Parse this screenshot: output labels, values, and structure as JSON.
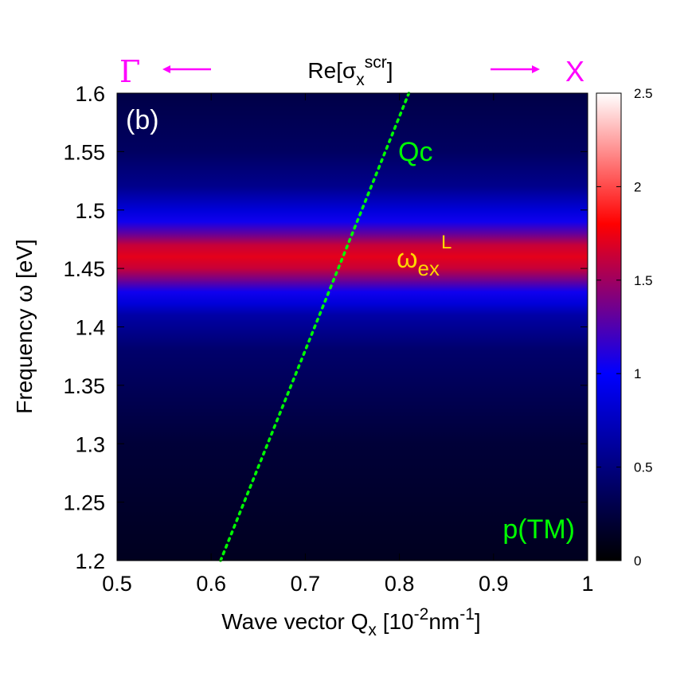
{
  "chart_data": {
    "type": "heatmap",
    "title": "Re[σ",
    "title_sub": "x",
    "title_sup": "scr",
    "title_end": "]",
    "xlabel": {
      "main": "Wave vector Q",
      "sub": "x",
      "bracket_open": " [10",
      "exp1": "-2",
      "unit": "nm",
      "exp2": "-1",
      "bracket_close": "]"
    },
    "ylabel": "Frequency ω [eV]",
    "xlim": [
      0.5,
      1.0
    ],
    "ylim": [
      1.2,
      1.6
    ],
    "x_ticks": [
      0.5,
      0.6,
      0.7,
      0.8,
      0.9,
      1.0
    ],
    "x_tick_labels": [
      "0.5",
      "0.6",
      "0.7",
      "0.8",
      "0.9",
      "1"
    ],
    "y_ticks": [
      1.2,
      1.25,
      1.3,
      1.35,
      1.4,
      1.45,
      1.5,
      1.55,
      1.6
    ],
    "y_tick_labels": [
      "1.2",
      "1.25",
      "1.3",
      "1.35",
      "1.4",
      "1.45",
      "1.5",
      "1.55",
      "1.6"
    ],
    "colorbar": {
      "range": [
        0,
        2.5
      ],
      "ticks": [
        0,
        0.5,
        1,
        1.5,
        2,
        2.5
      ],
      "tick_labels": [
        "0",
        "0.5",
        "1",
        "1.5",
        "2",
        "2.5"
      ],
      "colors": [
        "#000000",
        "#0000ff",
        "#ff0000",
        "#ffffff"
      ]
    },
    "profile": {
      "description_free": true,
      "omega": [
        1.2,
        1.3,
        1.38,
        1.41,
        1.42,
        1.43,
        1.44,
        1.45,
        1.46,
        1.47,
        1.48,
        1.49,
        1.5,
        1.51,
        1.52,
        1.55,
        1.6
      ],
      "value": [
        0.12,
        0.22,
        0.42,
        0.65,
        0.85,
        1.05,
        1.35,
        1.62,
        1.72,
        1.62,
        1.3,
        1.05,
        0.85,
        0.7,
        0.55,
        0.38,
        0.28
      ]
    },
    "light_line": {
      "label": "Qc",
      "color": "#00ff00",
      "points": [
        [
          0.61,
          1.2
        ],
        [
          0.81,
          1.6
        ]
      ]
    },
    "annotations": {
      "panel": "(b)",
      "polarization": "p(TM)",
      "exciton_main": "ω",
      "exciton_sub": "ex",
      "exciton_sup": "L",
      "gamma": "Γ",
      "x_point": "X",
      "arrow_left": "←",
      "arrow_right": "→"
    },
    "colors": {
      "magenta": "#ff00ff",
      "green": "#00ff00",
      "yellow": "#ffd700"
    }
  }
}
